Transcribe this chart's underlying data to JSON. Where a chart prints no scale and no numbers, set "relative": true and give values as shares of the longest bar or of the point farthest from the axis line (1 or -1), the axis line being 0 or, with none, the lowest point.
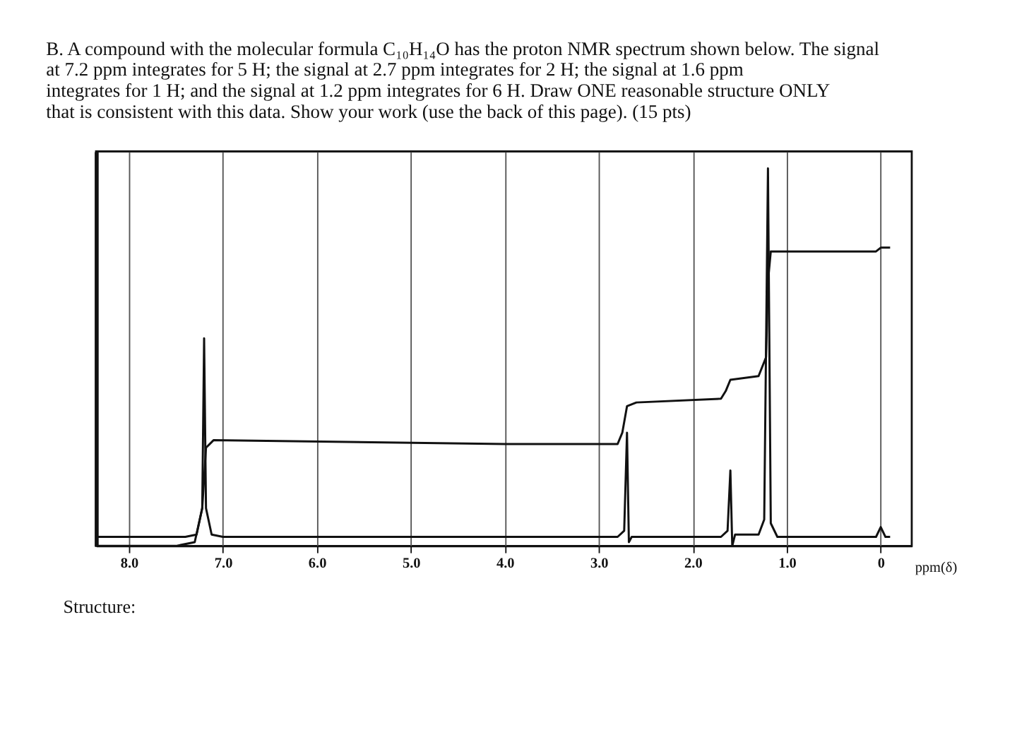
{
  "chart_data": {
    "type": "line",
    "relative": true,
    "title": "B. A compound with the molecular formula C₁₀H₁₄O has the proton NMR spectrum shown below. The signal at 7.2 ppm integrates for 5 H; the signal at 2.7 ppm integrates for 2 H; the signal at 1.6 ppm integrates for 1 H; and the signal at 1.2 ppm integrates for 6 H. Draw ONE reasonable structure ONLY that is consistent with this data. Show your work (use the back of this page). (15 pts)",
    "xlabel": "ppm(δ)",
    "annotations": [
      "Structure:"
    ],
    "xlim": [
      8.35,
      -0.33
    ],
    "xticks": [
      {
        "value": 8,
        "label": "8.0"
      },
      {
        "value": 7,
        "label": "7.0"
      },
      {
        "value": 6,
        "label": "6.0"
      },
      {
        "value": 5,
        "label": "5.0"
      },
      {
        "value": 4,
        "label": "4.0"
      },
      {
        "value": 3,
        "label": "3.0"
      },
      {
        "value": 2,
        "label": "2.0"
      },
      {
        "value": 1,
        "label": "1.0"
      },
      0
    ],
    "grid": "x",
    "tick_labels": "x",
    "line_style": "solid",
    "marker": "none",
    "series": [
      {
        "color": "#111111",
        "x": [
          8.35,
          7.4,
          7.28,
          7.22,
          7.2,
          7.18,
          7.12,
          7.0,
          2.8,
          2.73,
          2.7,
          2.68,
          2.65,
          1.7,
          1.63,
          1.6,
          1.58,
          1.55,
          1.45,
          1.3,
          1.24,
          1.2,
          1.17,
          1.1,
          0.05,
          0.0,
          -0.05,
          -0.1
        ],
        "values": [
          0.024,
          0.024,
          0.03,
          0.1,
          0.55,
          0.1,
          0.03,
          0.024,
          0.024,
          0.04,
          0.3,
          0.01,
          0.024,
          0.024,
          0.04,
          0.2,
          0.0,
          0.03,
          0.03,
          0.03,
          0.07,
          1.0,
          0.06,
          0.024,
          0.024,
          0.05,
          0.024,
          0.024
        ]
      },
      {
        "color": "#111111",
        "x": [
          8.35,
          7.5,
          7.3,
          7.22,
          7.18,
          7.1,
          4.0,
          2.8,
          2.75,
          2.7,
          2.6,
          1.7,
          1.65,
          1.6,
          1.3,
          1.22,
          1.2,
          1.17,
          0.05,
          0.0,
          -0.1
        ],
        "values": [
          0,
          0,
          0.01,
          0.1,
          0.26,
          0.28,
          0.27,
          0.27,
          0.3,
          0.37,
          0.38,
          0.39,
          0.41,
          0.44,
          0.45,
          0.5,
          0.7,
          0.78,
          0.78,
          0.79,
          0.79
        ]
      }
    ]
  }
}
